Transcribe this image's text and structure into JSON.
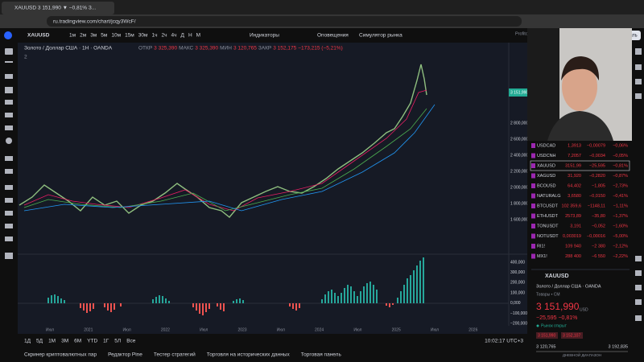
{
  "browser": {
    "tab_title": "XAUUSD 3 151,990 ▼ −0,81% З...",
    "url": "ru.tradingview.com/chart/jcqy3WcF/"
  },
  "toolbar": {
    "symbol": "XAUUSD",
    "intervals": [
      "1м",
      "2м",
      "3м",
      "5м",
      "10м",
      "15м",
      "30м",
      "1ч",
      "2ч",
      "4ч",
      "Д",
      "Н",
      "М"
    ],
    "indicators": "Индикаторы",
    "alerts": "Оповещения",
    "replay": "Симулятор рынка",
    "publish": "Опубликовать",
    "user": "Profitonika"
  },
  "legend": {
    "title": "Золото / Доллар США · 1Н · OANDA",
    "ohlc": [
      "ОТКР",
      "3 325,390",
      "МАКС",
      "3 325,390",
      "МИН",
      "3 120,765",
      "ЗАКР",
      "3 152,175",
      "−173,215 (−5,21%)"
    ],
    "count": "2"
  },
  "price_axis": [
    "2 800,000",
    "2 600,000",
    "2 400,000",
    "2 200,000",
    "2 000,000",
    "1 800,000",
    "1 600,000"
  ],
  "price_tag": "3 151,990",
  "oscillator_axis": [
    "400,000",
    "300,000",
    "200,000",
    "100,000",
    "0,000",
    "−100,000",
    "−200,000"
  ],
  "time_axis": [
    "Июл",
    "2021",
    "Июл",
    "2022",
    "Июл",
    "2023",
    "Июл",
    "2024",
    "Июл",
    "2025",
    "Июл",
    "2026"
  ],
  "ranges": [
    "1Д",
    "5Д",
    "1М",
    "3М",
    "6М",
    "YTD",
    "1Г",
    "5Л",
    "Все"
  ],
  "clock": "10:02:17 UTC+3",
  "bottom_tabs": [
    "Скринер криптовалютных пар",
    "Редактор Pine",
    "Тестер стратегий",
    "Торговля на исторических данных",
    "Торговая панель"
  ],
  "watchlist": [
    [
      "USDCAD",
      "1,3913",
      "−0,00079",
      "−0,06%"
    ],
    [
      "USDCNH",
      "7,2057",
      "−0,0034",
      "−0,05%"
    ],
    [
      "XAUUSD",
      "3151,99",
      "−25,595",
      "−0,81%"
    ],
    [
      "XAGUSD",
      "31,920",
      "−0,2820",
      "−0,87%"
    ],
    [
      "BCOUSD",
      "64,402",
      "−1,805",
      "−2,73%"
    ],
    [
      "NATURALG",
      "3,6580",
      "−0,0150",
      "−0,41%"
    ],
    [
      "BTCUSDT",
      "102 359,6",
      "−1148,11",
      "−1,11%"
    ],
    [
      "ETHUSDT",
      "2573,89",
      "−35,80",
      "−1,37%"
    ],
    [
      "TONUSDT",
      "3,191",
      "−0,052",
      "−1,60%"
    ],
    [
      "NOTUSDT",
      "0,003019",
      "−0,00016",
      "−5,00%"
    ],
    [
      "RI1!",
      "109 940",
      "−2 380",
      "−2,12%"
    ],
    [
      "MX1!",
      "288 400",
      "−6 550",
      "−2,22%"
    ]
  ],
  "details": {
    "symbol": "XAUUSD",
    "name": "Золото / Доллар США · OANDA",
    "category": "Товары • CM",
    "price": "3 151,990",
    "currency": "USD",
    "change": "−25,595 −0,81%",
    "status": "Рынок открыт",
    "bid": "3 151,990",
    "ask": "3 152,107",
    "low": "3 120,765",
    "range_label": "ДНЕВНОЙ ДИАПАЗОН",
    "high": "3 192,835"
  }
}
